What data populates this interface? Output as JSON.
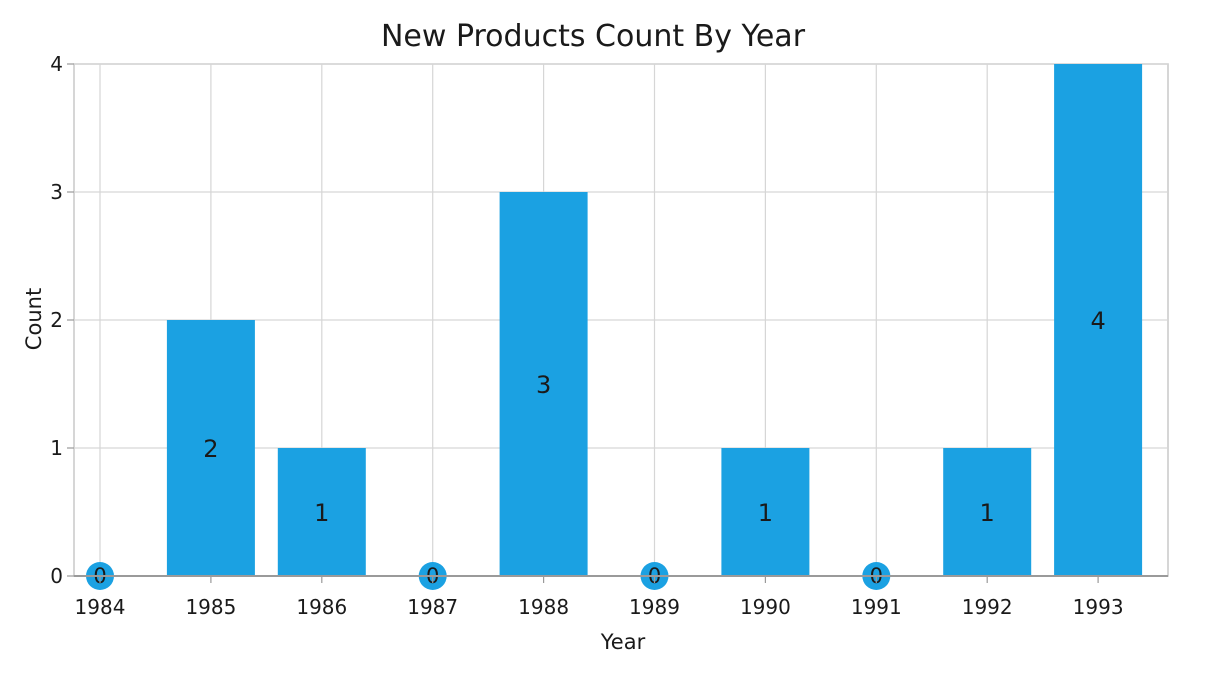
{
  "chart_data": {
    "type": "bar",
    "title": "New Products Count By Year",
    "xlabel": "Year",
    "ylabel": "Count",
    "categories": [
      "1984",
      "1985",
      "1986",
      "1987",
      "1988",
      "1989",
      "1990",
      "1991",
      "1992",
      "1993"
    ],
    "values": [
      0,
      2,
      1,
      0,
      3,
      0,
      1,
      0,
      1,
      4
    ],
    "ylim": [
      0,
      4
    ],
    "yticks": [
      0,
      1,
      2,
      3,
      4
    ],
    "grid": true,
    "bar_color": "#1ba1e2",
    "data_labels": true
  }
}
